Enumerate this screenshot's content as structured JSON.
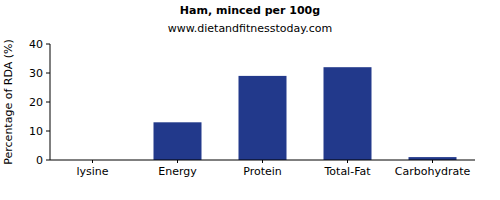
{
  "chart_data": {
    "type": "bar",
    "title": "Ham, minced per 100g",
    "subtitle": "www.dietandfitnesstoday.com",
    "y_label": "Percentage of RDA (%)",
    "categories": [
      "lysine",
      "Energy",
      "Protein",
      "Total-Fat",
      "Carbohydrate"
    ],
    "values": [
      0,
      13,
      29,
      32,
      1
    ],
    "color": "#22398b",
    "ylim": [
      0,
      40
    ],
    "yticks": [
      0,
      10,
      20,
      30,
      40
    ],
    "grid": false
  }
}
